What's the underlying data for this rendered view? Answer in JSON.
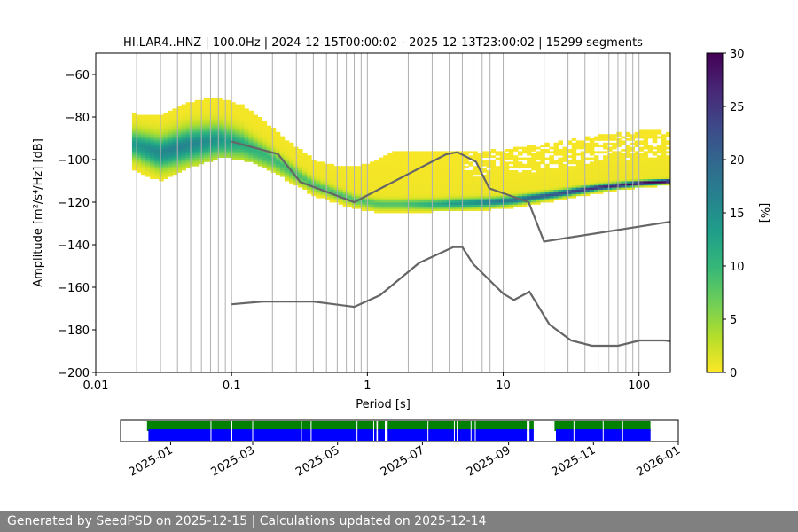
{
  "chart_data": [
    {
      "type": "heatmap",
      "title": "HI.LAR4..HNZ | 100.0Hz | 2024-12-15T00:00:02 - 2025-12-13T23:00:02 | 15299 segments",
      "xlabel": "Period [s]",
      "ylabel": "Amplitude [m²/s⁴/Hz] [dB]",
      "x_scale": "log",
      "xlim": [
        0.01,
        170
      ],
      "ylim": [
        -200,
        -50
      ],
      "x_ticks": [
        0.01,
        0.1,
        1,
        10,
        100
      ],
      "x_tick_labels": [
        "0.01",
        "0.1",
        "1",
        "10",
        "100"
      ],
      "y_ticks": [
        -200,
        -180,
        -160,
        -140,
        -120,
        -100,
        -80,
        -60
      ],
      "y_tick_labels": [
        "−200",
        "−180",
        "−160",
        "−140",
        "−120",
        "−100",
        "−80",
        "−60"
      ],
      "grid": "vertical lines at periods",
      "colorbar": {
        "label": "[%]",
        "range": [
          0,
          30
        ],
        "ticks": [
          0,
          5,
          10,
          15,
          20,
          25,
          30
        ],
        "tick_labels": [
          "0",
          "5",
          "10",
          "15",
          "20",
          "25",
          "30"
        ],
        "colormap": "viridis_r",
        "colors": [
          "#fde725",
          "#b5de2b",
          "#6ece58",
          "#35b779",
          "#1f9e89",
          "#26828e",
          "#31688e",
          "#3e4989",
          "#482878",
          "#440154"
        ]
      },
      "series": [
        {
          "role": "mode",
          "points": [
            [
              0.019,
              -93
            ],
            [
              0.03,
              -97
            ],
            [
              0.05,
              -93
            ],
            [
              0.08,
              -91
            ],
            [
              0.12,
              -93
            ],
            [
              0.2,
              -100
            ],
            [
              0.4,
              -112
            ],
            [
              0.8,
              -119
            ],
            [
              1.2,
              -121
            ],
            [
              3,
              -121
            ],
            [
              8,
              -120
            ],
            [
              12,
              -119
            ],
            [
              20,
              -117
            ],
            [
              50,
              -113
            ],
            [
              100,
              -111
            ],
            [
              170,
              -110
            ]
          ]
        },
        {
          "role": "high noise model",
          "color": "#666666",
          "points": [
            [
              0.1,
              -91.5
            ],
            [
              0.22,
              -97.4
            ],
            [
              0.32,
              -110.5
            ],
            [
              0.8,
              -120
            ],
            [
              3.8,
              -97.5
            ],
            [
              4.6,
              -96.5
            ],
            [
              6.3,
              -101
            ],
            [
              7.9,
              -113.5
            ],
            [
              15.4,
              -120
            ],
            [
              20,
              -138.5
            ],
            [
              354.8,
              -126
            ]
          ]
        },
        {
          "role": "low noise model",
          "color": "#666666",
          "points": [
            [
              0.1,
              -168
            ],
            [
              0.17,
              -166.7
            ],
            [
              0.4,
              -166.7
            ],
            [
              0.8,
              -169.2
            ],
            [
              1.24,
              -163.7
            ],
            [
              2.4,
              -148.6
            ],
            [
              4.3,
              -141.1
            ],
            [
              5,
              -141.1
            ],
            [
              6,
              -149
            ],
            [
              10,
              -163
            ],
            [
              12,
              -166
            ],
            [
              15.6,
              -162.1
            ],
            [
              21.9,
              -177.5
            ],
            [
              31.6,
              -185
            ],
            [
              45,
              -187.5
            ],
            [
              70,
              -187.5
            ],
            [
              101,
              -185
            ],
            [
              154,
              -185
            ],
            [
              328,
              -187.5
            ]
          ]
        }
      ]
    },
    {
      "type": "timeline",
      "x_scale": "time",
      "xlim": [
        "2024-11-26",
        "2026-01-01"
      ],
      "x_tick_labels": [
        "2025-01",
        "2025-03",
        "2025-05",
        "2025-07",
        "2025-09",
        "2025-11",
        "2026-01"
      ],
      "x_tick_dates": [
        "2025-01-01",
        "2025-03-01",
        "2025-05-01",
        "2025-07-01",
        "2025-09-01",
        "2025-11-01",
        "2026-01-01"
      ],
      "tracks": [
        {
          "role": "data available",
          "color": "#008000",
          "spans": [
            [
              "2024-12-15",
              "2025-05-29"
            ],
            [
              "2025-05-30",
              "2025-06-04"
            ],
            [
              "2025-06-06",
              "2025-09-14"
            ],
            [
              "2025-09-16",
              "2025-09-19"
            ],
            [
              "2025-10-04",
              "2025-12-12"
            ]
          ]
        },
        {
          "role": "PSD segments",
          "color": "#0000ff",
          "spans": [
            [
              "2024-12-16",
              "2025-05-29"
            ],
            [
              "2025-05-30",
              "2025-06-04"
            ],
            [
              "2025-06-06",
              "2025-09-14"
            ],
            [
              "2025-09-16",
              "2025-09-19"
            ],
            [
              "2025-10-05",
              "2025-12-12"
            ]
          ]
        }
      ],
      "gap_dates": [
        "2025-01-30",
        "2025-02-14",
        "2025-03-01",
        "2025-04-05",
        "2025-04-12",
        "2025-05-15",
        "2025-05-27",
        "2025-07-05",
        "2025-07-24",
        "2025-07-26",
        "2025-08-05",
        "2025-08-08",
        "2025-10-18",
        "2025-11-08",
        "2025-11-22"
      ]
    }
  ],
  "footer": {
    "text": "Generated by SeedPSD on 2025-12-15 | Calculations updated on 2025-12-14"
  }
}
